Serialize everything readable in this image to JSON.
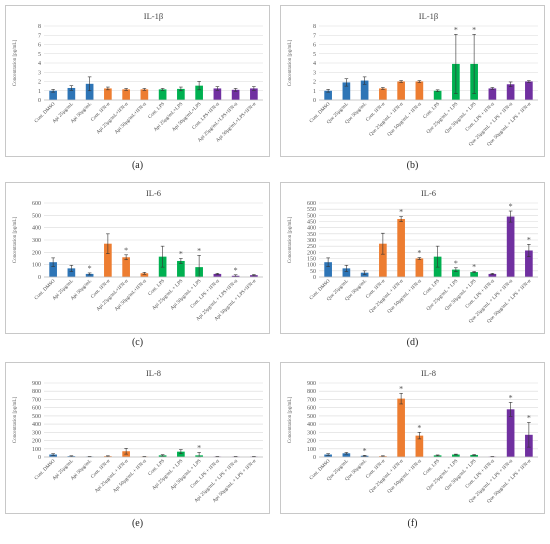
{
  "colors": {
    "blue": "#2E75B6",
    "orange": "#ED7D31",
    "green": "#00B050",
    "purple": "#7030A0",
    "grid": "#d9d9d9",
    "border": "#c8c8c8"
  },
  "chart_data": [
    {
      "type": "bar",
      "label": "(a)",
      "title": "IL-1β",
      "ylabel": "Concentration [pg/mL]",
      "ylim": [
        0,
        8
      ],
      "yticks": [
        0,
        1,
        2,
        3,
        4,
        5,
        6,
        7,
        8
      ],
      "grid": true,
      "categories": [
        "Cont. DMSO",
        "Api 25μg/mL",
        "Api 50μg/mL",
        "Cont. IFN-α",
        "Api 25μg/mL+IFN-α",
        "Api 50μg/mL+IFN-α",
        "Cont. LPS",
        "Api 25μg/mL+LPS",
        "Api 50μg/mL+LPS",
        "Cont. LPS+IFN-α",
        "Api 25μg/mL+LPS+IFN-α",
        "Api 50μg/mL+LPS+IFN-α"
      ],
      "values": [
        1.0,
        1.3,
        1.75,
        1.25,
        1.15,
        1.15,
        1.15,
        1.2,
        1.55,
        1.25,
        1.1,
        1.25
      ],
      "errors": [
        0.15,
        0.25,
        0.75,
        0.15,
        0.1,
        0.1,
        0.1,
        0.2,
        0.45,
        0.2,
        0.15,
        0.2
      ],
      "groups": [
        "blue",
        "blue",
        "blue",
        "orange",
        "orange",
        "orange",
        "green",
        "green",
        "green",
        "purple",
        "purple",
        "purple"
      ],
      "significant": [
        false,
        false,
        false,
        false,
        false,
        false,
        false,
        false,
        false,
        false,
        false,
        false
      ]
    },
    {
      "type": "bar",
      "label": "(b)",
      "title": "IL-1β",
      "ylabel": "Concentration [pg/mL]",
      "ylim": [
        0,
        8
      ],
      "yticks": [
        0,
        1,
        2,
        3,
        4,
        5,
        6,
        7,
        8
      ],
      "grid": true,
      "categories": [
        "Cont. DMSO",
        "Que 25μg/mL",
        "Que 50μg/mL",
        "Cont. IFN-α",
        "Que 25μg/mL + IFN-α",
        "Que 50μg/mL + IFN-α",
        "Cont. LPS",
        "Que 25μg/mL + LPS",
        "Que 50μg/mL + LPS",
        "Cont. LPS + IFN-α",
        "Que 25μg/mL + LPS + IFN-α",
        "Que 50μg/mL + LPS + IFN-α"
      ],
      "values": [
        1.0,
        1.9,
        2.1,
        1.25,
        2.0,
        2.0,
        1.0,
        3.9,
        3.9,
        1.25,
        1.7,
        2.0
      ],
      "errors": [
        0.15,
        0.4,
        0.4,
        0.1,
        0.1,
        0.1,
        0.1,
        3.2,
        3.2,
        0.1,
        0.25,
        0.1
      ],
      "groups": [
        "blue",
        "blue",
        "blue",
        "orange",
        "orange",
        "orange",
        "green",
        "green",
        "green",
        "purple",
        "purple",
        "purple"
      ],
      "significant": [
        false,
        false,
        false,
        false,
        false,
        false,
        false,
        true,
        true,
        false,
        false,
        false
      ]
    },
    {
      "type": "bar",
      "label": "(c)",
      "title": "IL-6",
      "ylabel": "Concentration [pg/mL]",
      "ylim": [
        0,
        600
      ],
      "yticks": [
        0,
        100,
        200,
        300,
        400,
        500,
        600
      ],
      "grid": true,
      "categories": [
        "Cont. DMSO",
        "Api 25μg/mL",
        "Api 50μg/mL",
        "Cont. IFN-α",
        "Api 25μg/mL+IFN-α",
        "Api 50μg/mL+IFN-α",
        "Cont. LPS",
        "Api 25μg/mL + LPS",
        "Api 50μg/mL + LPS",
        "Cont. LPS + IFN-α",
        "Api 25μg/mL + LPS+IFN-α",
        "Api 50μg/mL + LPS+IFN-α"
      ],
      "values": [
        120,
        70,
        25,
        270,
        160,
        30,
        165,
        130,
        80,
        25,
        10,
        15
      ],
      "errors": [
        35,
        25,
        8,
        80,
        20,
        8,
        85,
        20,
        95,
        5,
        8,
        5
      ],
      "groups": [
        "blue",
        "blue",
        "blue",
        "orange",
        "orange",
        "orange",
        "green",
        "green",
        "green",
        "purple",
        "purple",
        "purple"
      ],
      "significant": [
        false,
        false,
        true,
        false,
        true,
        false,
        false,
        true,
        true,
        false,
        true,
        false
      ]
    },
    {
      "type": "bar",
      "label": "(d)",
      "title": "IL-6",
      "ylabel": "Concentration [pg/mL]",
      "ylim": [
        0,
        600
      ],
      "yticks": [
        0,
        50,
        100,
        150,
        200,
        250,
        300,
        350,
        400,
        450,
        500,
        550,
        600
      ],
      "grid": true,
      "categories": [
        "Cont. DMSO",
        "Que 25μg/mL",
        "Que 50μg/mL",
        "Cont. IFN-α",
        "Que 25μg/mL + IFN-α",
        "Que 50μg/mL + IFN-α",
        "Cont. LPS",
        "Que 25μg/mL + LPS",
        "Que 50μg/mL + LPS",
        "Cont. LPS + IFN-α",
        "Que 25μg/mL + LPS + IFN-α",
        "Que 50μg/mL + LPS + IFN-α"
      ],
      "values": [
        120,
        70,
        35,
        270,
        470,
        150,
        165,
        60,
        40,
        25,
        490,
        215
      ],
      "errors": [
        35,
        25,
        15,
        85,
        20,
        8,
        85,
        15,
        5,
        5,
        45,
        50
      ],
      "groups": [
        "blue",
        "blue",
        "blue",
        "orange",
        "orange",
        "orange",
        "green",
        "green",
        "green",
        "purple",
        "purple",
        "purple"
      ],
      "significant": [
        false,
        false,
        false,
        false,
        true,
        true,
        false,
        true,
        true,
        false,
        true,
        true
      ]
    },
    {
      "type": "bar",
      "label": "(e)",
      "title": "IL-8",
      "ylabel": "Concentration [pg/mL]",
      "ylim": [
        0,
        900
      ],
      "yticks": [
        0,
        100,
        200,
        300,
        400,
        500,
        600,
        700,
        800,
        900
      ],
      "grid": true,
      "categories": [
        "Cont. DMSO",
        "Api 25μg/mL",
        "Api 50μg/mL",
        "Cont. IFN-α",
        "Api 25μg/mL + IFN-α",
        "Api 50μg/mL + IFN-α",
        "Cont. LPS",
        "Api 25μg/mL + LPS",
        "Api 50μg/mL + LPS",
        "Cont. LPS + IFN-α",
        "Api 25μg/mL + LPS + IFN-α",
        "Api 50μg/mL + LPS + IFN-α"
      ],
      "values": [
        30,
        10,
        5,
        10,
        70,
        5,
        20,
        65,
        20,
        5,
        5,
        5
      ],
      "errors": [
        10,
        5,
        3,
        5,
        35,
        3,
        8,
        25,
        35,
        3,
        3,
        3
      ],
      "groups": [
        "blue",
        "blue",
        "blue",
        "orange",
        "orange",
        "orange",
        "green",
        "green",
        "green",
        "purple",
        "purple",
        "purple"
      ],
      "significant": [
        false,
        false,
        false,
        false,
        false,
        false,
        false,
        false,
        true,
        false,
        false,
        false
      ]
    },
    {
      "type": "bar",
      "label": "(f)",
      "title": "IL-8",
      "ylabel": "Concentration [pg/mL]",
      "ylim": [
        0,
        900
      ],
      "yticks": [
        0,
        100,
        200,
        300,
        400,
        500,
        600,
        700,
        800,
        900
      ],
      "grid": true,
      "categories": [
        "Cont. DMSO",
        "Que 25μg/mL",
        "Que 50μg/mL",
        "Cont. IFN-α",
        "Que 25μg/mL + IFN-α",
        "Que 50μg/mL + IFN-α",
        "Cont. LPS",
        "Que 25μg/mL + LPS",
        "Que 50μg/mL + LPS",
        "Cont. LPS + IFN-α",
        "Que 25μg/mL + LPS + IFN-α",
        "Que 50μg/mL + LPS + IFN-α"
      ],
      "values": [
        30,
        45,
        15,
        10,
        710,
        260,
        20,
        30,
        25,
        5,
        580,
        270
      ],
      "errors": [
        10,
        10,
        5,
        5,
        65,
        40,
        5,
        5,
        5,
        3,
        85,
        150
      ],
      "groups": [
        "blue",
        "blue",
        "blue",
        "orange",
        "orange",
        "orange",
        "green",
        "green",
        "green",
        "purple",
        "purple",
        "purple"
      ],
      "significant": [
        false,
        false,
        true,
        false,
        true,
        true,
        false,
        false,
        false,
        false,
        true,
        true
      ]
    }
  ]
}
